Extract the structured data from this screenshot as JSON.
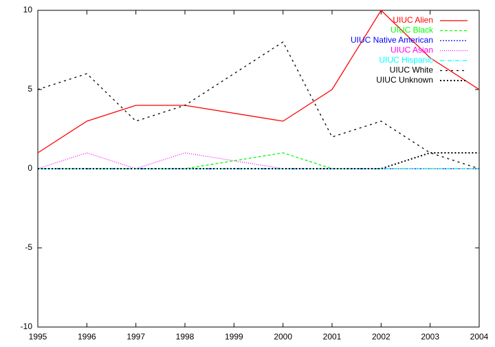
{
  "chart_data": {
    "type": "line",
    "x": [
      1995,
      1996,
      1997,
      1998,
      2000,
      2001,
      2002,
      2003,
      2004
    ],
    "series": [
      {
        "name": "UIUC Alien",
        "color": "#ff0000",
        "dash": "none",
        "values": [
          1,
          3,
          4,
          4,
          3,
          5,
          10,
          7,
          5
        ]
      },
      {
        "name": "UIUC Black",
        "color": "#00ff00",
        "dash": "4,3",
        "values": [
          0,
          0,
          0,
          0,
          1,
          0,
          0,
          0,
          0
        ]
      },
      {
        "name": "UIUC Native American",
        "color": "#0000ff",
        "dash": "2,2",
        "values": [
          0,
          0,
          0,
          0,
          0,
          0,
          0,
          0,
          0
        ]
      },
      {
        "name": "UIUC Asian",
        "color": "#ff00ff",
        "dash": "1,2",
        "values": [
          0,
          1,
          0,
          1,
          0,
          0,
          0,
          0,
          0
        ]
      },
      {
        "name": "UIUC Hispanic",
        "color": "#00ffff",
        "dash": "6,2,1,2",
        "values": [
          0,
          0,
          0,
          0,
          0,
          0,
          0,
          0,
          0
        ]
      },
      {
        "name": "UIUC White",
        "color": "#000000",
        "dash": "3,5",
        "values": [
          5,
          6,
          3,
          4,
          8,
          2,
          3,
          1,
          0
        ]
      },
      {
        "name": "UIUC Unknown",
        "color": "#000000",
        "dash": "2,3",
        "width": 2,
        "values": [
          0,
          0,
          0,
          0,
          0,
          0,
          0,
          1,
          1
        ]
      }
    ],
    "xlim": [
      1995,
      2004
    ],
    "xticks": [
      1995,
      1996,
      1997,
      1998,
      1999,
      2000,
      2001,
      2002,
      2003,
      2004
    ],
    "ylim": [
      -10,
      10
    ],
    "yticks": [
      -10,
      -5,
      0,
      5,
      10
    ],
    "legend": "top-right"
  }
}
